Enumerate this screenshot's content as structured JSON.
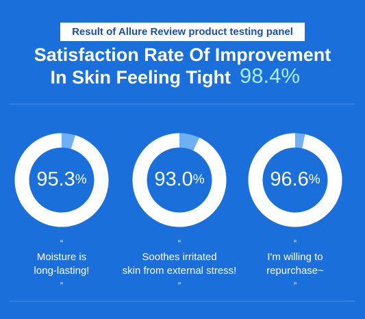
{
  "header": {
    "badge": "Result of Allure Review product testing panel",
    "title": [
      "Satisfaction Rate Of Improvement",
      "In Skin Feeling Tight"
    ],
    "highlight": "98.4%"
  },
  "chart_data": [
    {
      "type": "donut",
      "values": [
        95.3
      ],
      "value_labels": [
        "95.3%"
      ],
      "color": "#ffffff",
      "rest_color": "#6fb0f5",
      "caption": [
        "“",
        "Moisture is",
        "long-lasting!",
        "”"
      ]
    },
    {
      "type": "donut",
      "values": [
        93.0
      ],
      "value_labels": [
        "93.0%"
      ],
      "color": "#ffffff",
      "rest_color": "#6fb0f5",
      "caption": [
        "“",
        "Soothes irritated",
        "skin from external stress!",
        "”"
      ]
    },
    {
      "type": "donut",
      "values": [
        96.6
      ],
      "value_labels": [
        "96.6%"
      ],
      "color": "#ffffff",
      "rest_color": "#6fb0f5",
      "caption": [
        "“",
        "I'm willing to",
        "repurchase~",
        "”"
      ]
    }
  ]
}
